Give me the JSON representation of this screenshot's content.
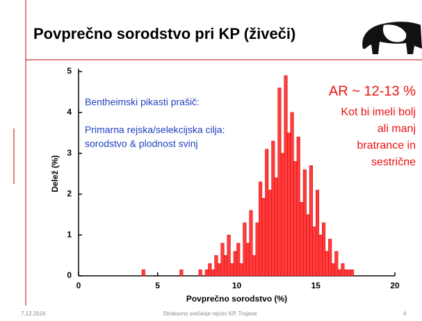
{
  "slide_title": "Povprečno sorodstvo pri KP (živeči)",
  "footer": {
    "date": "7.12.2016",
    "event": "Strokovno srečanje rejcev KP, Trojane",
    "page": "4"
  },
  "chart_data": {
    "type": "histogram",
    "xlabel": "Povprečno sorodstvo (%)",
    "ylabel": "Delež (%)",
    "annotations_blue": [
      "Bentheimski pikasti prašič:",
      "Primarna rejska/selekcijska cilja:",
      "sorodstvo & plodnost svinj"
    ],
    "annotations_red": [
      "AR ~ 12-13 %",
      "Kot bi imeli bolj",
      "ali manj",
      "bratrance in",
      "sestrične"
    ],
    "color": "#ff3b3b",
    "edge_color": "#cc0000",
    "bins": [
      4,
      4.2,
      4.4,
      4.6,
      4.8,
      5,
      5.2,
      5.4,
      5.6,
      5.8,
      6,
      6.2,
      6.4,
      6.6,
      6.8,
      7,
      7.2,
      7.4,
      7.6,
      7.8,
      8,
      8.2,
      8.4,
      8.6,
      8.8,
      9,
      9.2,
      9.4,
      9.6,
      9.8,
      10,
      10.2,
      10.4,
      10.6,
      10.8,
      11,
      11.2,
      11.4,
      11.6,
      11.8,
      12,
      12.2,
      12.4,
      12.6,
      12.8,
      13,
      13.2,
      13.4,
      13.6,
      13.8,
      14,
      14.2,
      14.4,
      14.6,
      14.8,
      15,
      15.2,
      15.4,
      15.6,
      15.8,
      16,
      16.2,
      16.4,
      16.6,
      16.8,
      17,
      17.2,
      17.4
    ],
    "values": [
      0.15,
      0,
      0,
      0,
      0,
      0,
      0,
      0,
      0,
      0,
      0,
      0,
      0.15,
      0,
      0,
      0,
      0,
      0,
      0.15,
      0,
      0.15,
      0.3,
      0.15,
      0.5,
      0.3,
      0.8,
      0.5,
      1.0,
      0.3,
      0.6,
      0.8,
      0.3,
      1.3,
      0.8,
      1.6,
      0.5,
      1.3,
      2.3,
      1.9,
      3.1,
      2.1,
      3.3,
      2.4,
      4.6,
      3.0,
      4.9,
      3.5,
      4.0,
      2.8,
      3.4,
      1.8,
      2.6,
      1.5,
      2.7,
      1.2,
      2.1,
      1.0,
      1.3,
      0.6,
      0.9,
      0.3,
      0.6,
      0.15,
      0.3,
      0.15,
      0.15,
      0.15
    ],
    "xlim": [
      0,
      20
    ],
    "xticks": [
      0,
      5,
      10,
      15,
      20
    ],
    "ylim": [
      0,
      5
    ],
    "yticks": [
      0,
      1,
      2,
      3,
      4,
      5
    ]
  }
}
